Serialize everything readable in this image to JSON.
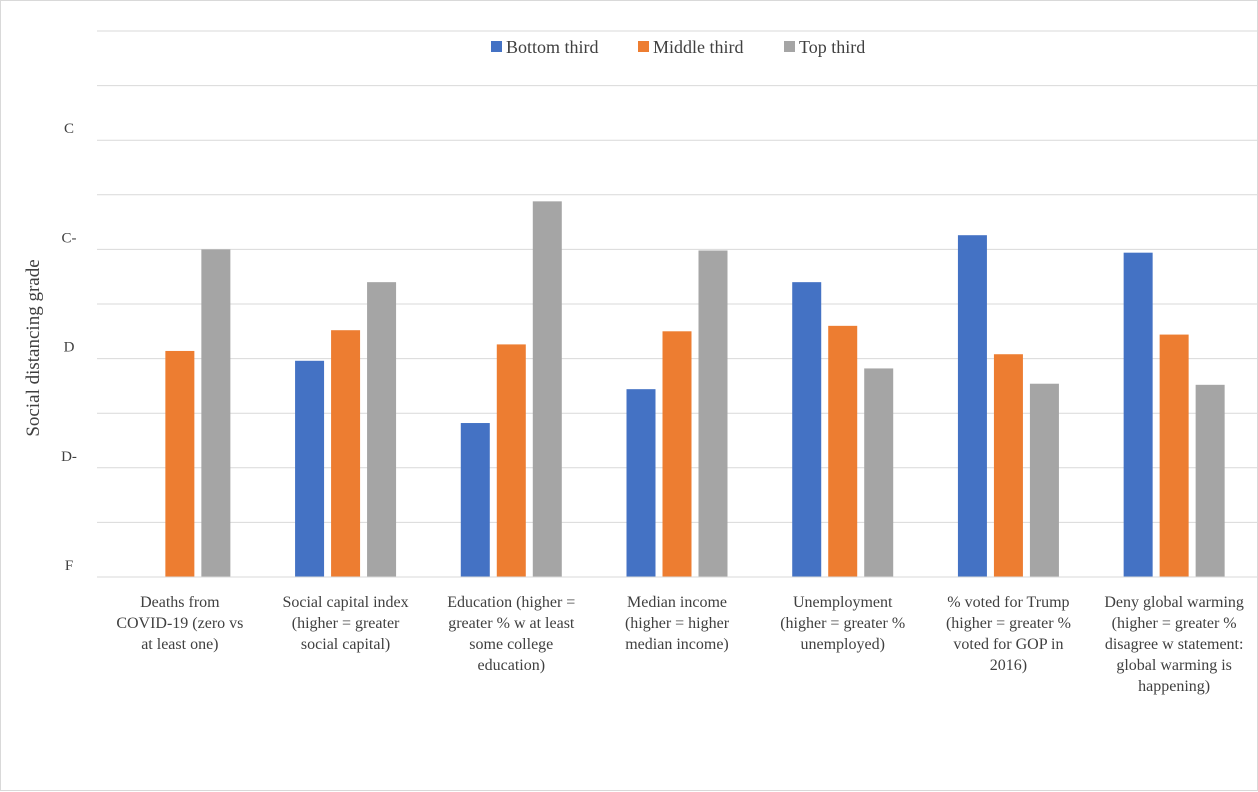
{
  "chart_data": {
    "type": "bar",
    "title": "",
    "xlabel": "",
    "ylabel": "Social distancing grade",
    "ylim": [
      0,
      5
    ],
    "y_ticks": [
      {
        "value": 0,
        "label": "F"
      },
      {
        "value": 1,
        "label": "D-"
      },
      {
        "value": 2,
        "label": "D"
      },
      {
        "value": 3,
        "label": "C-"
      },
      {
        "value": 4,
        "label": "C"
      }
    ],
    "grid": true,
    "legend_position": "top",
    "categories": [
      [
        "Deaths from",
        "COVID-19 (zero vs",
        "at least one)"
      ],
      [
        "Social capital index",
        "(higher = greater",
        "social capital)"
      ],
      [
        "Education (higher =",
        "greater % w at least",
        "some college",
        "education)"
      ],
      [
        "Median income",
        "(higher = higher",
        "median income)"
      ],
      [
        "Unemployment",
        "(higher = greater %",
        "unemployed)"
      ],
      [
        "% voted for Trump",
        "(higher = greater %",
        "voted for GOP in",
        "2016)"
      ],
      [
        "Deny global warming",
        "(higher = greater %",
        "disagree w statement:",
        "global warming is",
        "happening)"
      ]
    ],
    "series": [
      {
        "name": "Bottom third",
        "color": "#4472C4",
        "values": [
          null,
          1.98,
          1.41,
          1.72,
          2.7,
          3.13,
          2.97
        ]
      },
      {
        "name": "Middle third",
        "color": "#ED7D31",
        "values": [
          2.07,
          2.26,
          2.13,
          2.25,
          2.3,
          2.04,
          2.22
        ]
      },
      {
        "name": "Top third",
        "color": "#A5A5A5",
        "values": [
          3.0,
          2.7,
          3.44,
          2.99,
          1.91,
          1.77,
          1.76
        ]
      }
    ]
  }
}
